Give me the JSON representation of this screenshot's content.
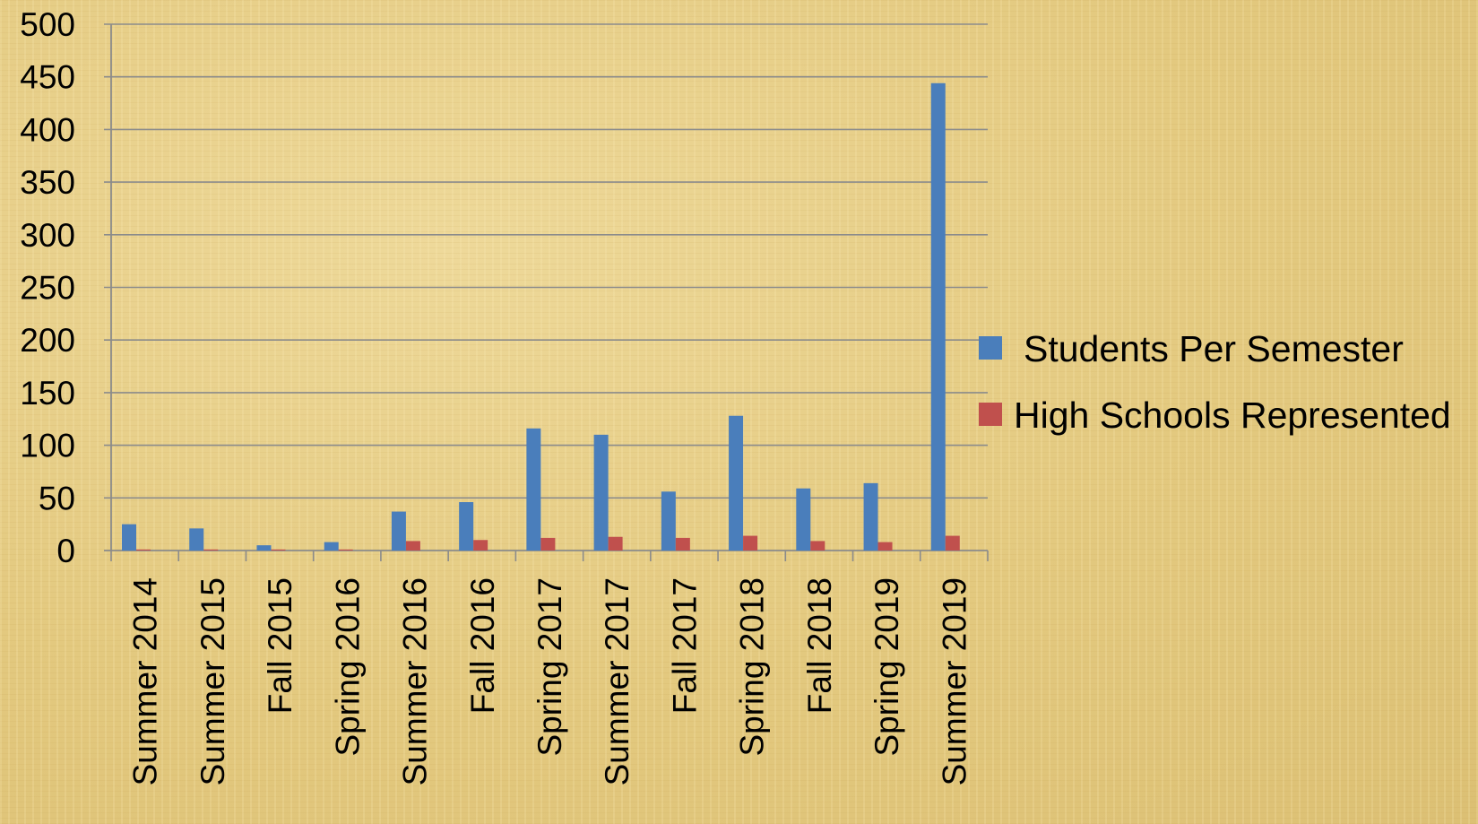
{
  "chart_data": {
    "type": "bar",
    "title": "",
    "xlabel": "",
    "ylabel": "",
    "ylim": [
      0,
      500
    ],
    "yticks": [
      0,
      50,
      100,
      150,
      200,
      250,
      300,
      350,
      400,
      450,
      500
    ],
    "grid": true,
    "legend_position": "right",
    "categories": [
      "Summer 2014",
      "Summer 2015",
      "Fall 2015",
      "Spring 2016",
      "Summer 2016",
      "Fall 2016",
      "Spring 2017",
      "Summer 2017",
      "Fall 2017",
      "Spring 2018",
      "Fall 2018",
      "Spring 2019",
      "Summer 2019"
    ],
    "series": [
      {
        "name": "Students Per Semester",
        "color": "#4a7ebb",
        "values": [
          25,
          21,
          5,
          8,
          37,
          46,
          116,
          110,
          56,
          128,
          59,
          64,
          444
        ]
      },
      {
        "name": "High Schools Represented",
        "color": "#c0504d",
        "values": [
          1,
          1,
          1,
          1,
          9,
          10,
          12,
          13,
          12,
          14,
          9,
          8,
          14
        ]
      }
    ]
  }
}
